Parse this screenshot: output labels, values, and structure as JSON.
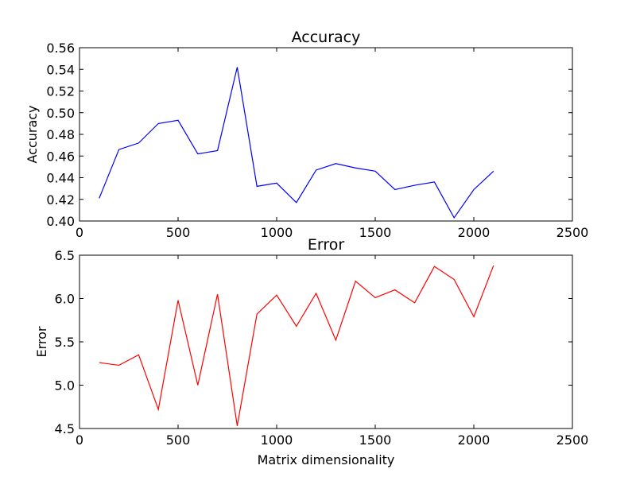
{
  "chart_data": [
    {
      "type": "line",
      "title": "Accuracy",
      "xlabel": "",
      "ylabel": "Accuracy",
      "xlim": [
        0,
        2500
      ],
      "ylim": [
        0.4,
        0.56
      ],
      "xticks": [
        0,
        500,
        1000,
        1500,
        2000,
        2500
      ],
      "xtick_labels": [
        "0",
        "500",
        "1000",
        "1500",
        "2000",
        "2500"
      ],
      "yticks": [
        0.4,
        0.42,
        0.44,
        0.46,
        0.48,
        0.5,
        0.52,
        0.54,
        0.56
      ],
      "ytick_labels": [
        "0.40",
        "0.42",
        "0.44",
        "0.46",
        "0.48",
        "0.50",
        "0.52",
        "0.54",
        "0.56"
      ],
      "grid": false,
      "series": [
        {
          "color": "#0000ff",
          "x": [
            100,
            200,
            300,
            400,
            500,
            600,
            700,
            800,
            900,
            1000,
            1100,
            1200,
            1300,
            1400,
            1500,
            1600,
            1700,
            1800,
            1900,
            2000,
            2100
          ],
          "values": [
            0.421,
            0.466,
            0.472,
            0.49,
            0.493,
            0.462,
            0.465,
            0.542,
            0.432,
            0.435,
            0.417,
            0.447,
            0.453,
            0.449,
            0.446,
            0.429,
            0.433,
            0.436,
            0.403,
            0.429,
            0.446
          ]
        }
      ]
    },
    {
      "type": "line",
      "title": "Error",
      "xlabel": "Matrix dimensionality",
      "ylabel": "Error",
      "xlim": [
        0,
        2500
      ],
      "ylim": [
        4.5,
        6.5
      ],
      "xticks": [
        0,
        500,
        1000,
        1500,
        2000,
        2500
      ],
      "xtick_labels": [
        "0",
        "500",
        "1000",
        "1500",
        "2000",
        "2500"
      ],
      "yticks": [
        4.5,
        5.0,
        5.5,
        6.0,
        6.5
      ],
      "ytick_labels": [
        "4.5",
        "5.0",
        "5.5",
        "6.0",
        "6.5"
      ],
      "grid": false,
      "series": [
        {
          "color": "#ff0000",
          "x": [
            100,
            200,
            300,
            400,
            500,
            600,
            700,
            800,
            900,
            1000,
            1100,
            1200,
            1300,
            1400,
            1500,
            1600,
            1700,
            1800,
            1900,
            2000,
            2100
          ],
          "values": [
            5.26,
            5.23,
            5.35,
            4.72,
            5.98,
            5.0,
            6.05,
            4.53,
            5.82,
            6.04,
            5.68,
            6.06,
            5.52,
            6.2,
            6.01,
            6.1,
            5.95,
            6.37,
            6.22,
            5.79,
            6.38
          ]
        }
      ]
    }
  ]
}
